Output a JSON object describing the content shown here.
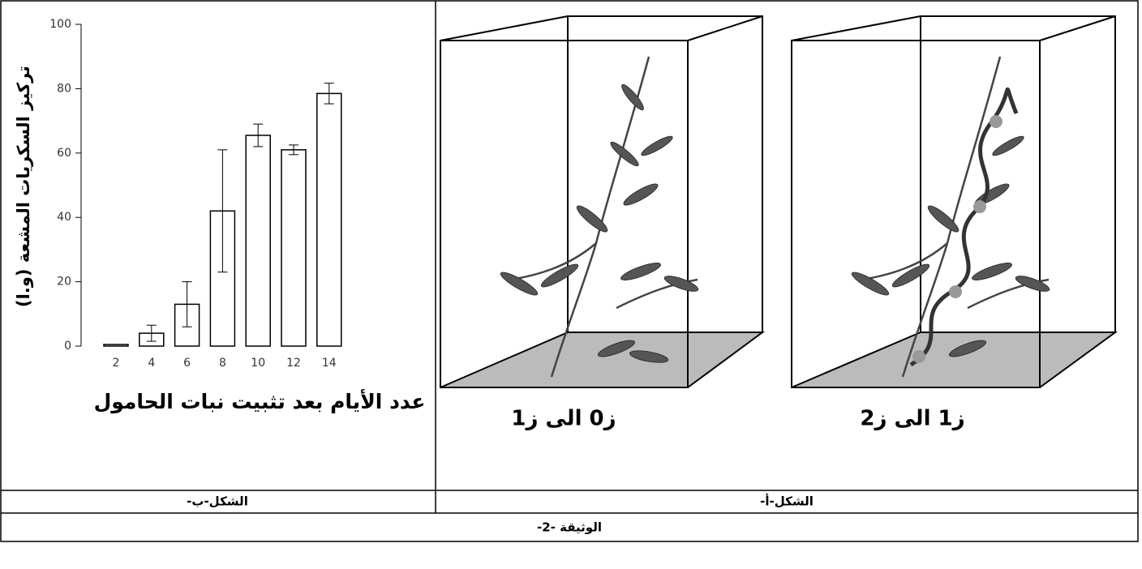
{
  "chart_data": {
    "type": "bar",
    "y_label": "تركيز السكريات المشعة (و.ا)",
    "x_label": "عدد الأيام بعد تثبيت نبات الحامول",
    "categories": [
      "2",
      "4",
      "6",
      "8",
      "10",
      "12",
      "14"
    ],
    "values": [
      0.5,
      4,
      13,
      42,
      65.5,
      61,
      78.5
    ],
    "errors": [
      0,
      2.5,
      7,
      19,
      3.5,
      1.5,
      3.2
    ],
    "color": "#ffffff",
    "ylim": [
      0,
      100
    ],
    "yticks": [
      0,
      20,
      40,
      60,
      80,
      100
    ]
  },
  "figure_b": {
    "caption": "الشكل-ب-"
  },
  "figure_a": {
    "caption": "الشكل-أ-",
    "left_box_label": "ز0 الى ز1",
    "right_box_label": "ز1  الى  ز2"
  },
  "document": {
    "caption": "الوثيقة -2-"
  }
}
